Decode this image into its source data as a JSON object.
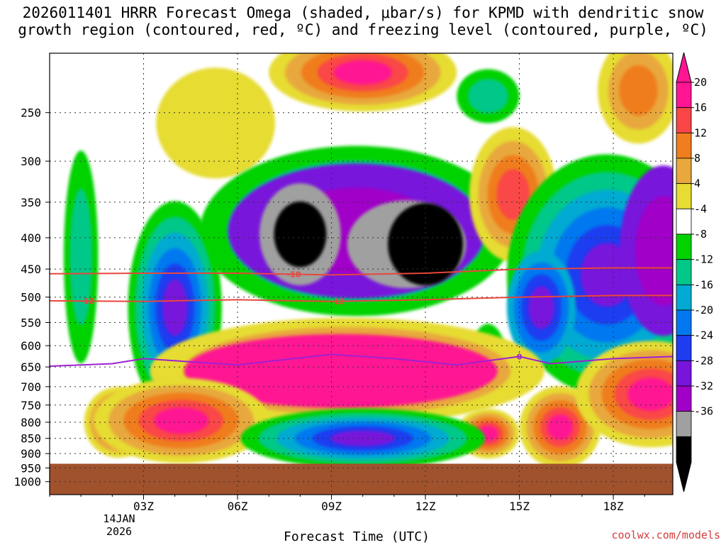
{
  "chart_data": {
    "type": "heatmap",
    "title_line1": "2026011401 HRRR Forecast Omega (shaded, μbar/s) for KPMD with dendritic snow",
    "title_line2": "growth region (contoured, red, ºC) and freezing level (contoured, purple, ºC)",
    "xlabel": "Forecast Time (UTC)",
    "ylabel": "",
    "credit": "coolwx.com/models",
    "date_label": [
      "14JAN",
      "2026"
    ],
    "x_ticks": [
      {
        "h": 3,
        "label": "03Z"
      },
      {
        "h": 6,
        "label": "06Z"
      },
      {
        "h": 9,
        "label": "09Z"
      },
      {
        "h": 12,
        "label": "12Z"
      },
      {
        "h": 15,
        "label": "15Z"
      },
      {
        "h": 18,
        "label": "18Z"
      }
    ],
    "xlim": [
      0,
      19.9
    ],
    "y_ticks": [
      250,
      300,
      350,
      400,
      450,
      500,
      550,
      600,
      650,
      700,
      750,
      800,
      850,
      900,
      950,
      1000
    ],
    "ylim_hPa": [
      1050,
      200
    ],
    "surface_pressure_hPa": 935,
    "colorbar": {
      "labels": [
        "20",
        "16",
        "12",
        "8",
        "4",
        "-4",
        "-8",
        "-12",
        "-16",
        "-20",
        "-24",
        "-28",
        "-32",
        "-36"
      ],
      "colors": [
        "#ff1493",
        "#fa4646",
        "#f07d1e",
        "#e8a83c",
        "#e6dc32",
        "#ffffff",
        "#00d200",
        "#00c888",
        "#00aad2",
        "#0078f0",
        "#1e3cf0",
        "#7814dc",
        "#a000c8",
        "#a0a0a0",
        "#000000"
      ],
      "arrow_top_color": "#ff1493",
      "arrow_bottom_color": "#000000"
    },
    "series": [
      {
        "name": "-18 ºC isotherm",
        "label": "-18",
        "color": "#e8463c",
        "x": [
          0,
          3,
          6,
          9,
          12,
          15,
          18,
          19.9
        ],
        "y": [
          458,
          457,
          457,
          460,
          457,
          450,
          448,
          448
        ]
      },
      {
        "name": "-12 ºC isotherm",
        "label": "-12",
        "color": "#e8463c",
        "x": [
          0,
          3,
          6,
          9,
          12,
          15,
          18,
          19.9
        ],
        "y": [
          507,
          508,
          505,
          508,
          505,
          500,
          497,
          497
        ]
      },
      {
        "name": "0 ºC freezing level",
        "label": "0",
        "color": "#a020d0",
        "x": [
          0,
          2,
          3,
          6,
          9,
          11,
          13,
          15,
          16,
          18,
          19.9
        ],
        "y": [
          648,
          642,
          630,
          645,
          620,
          630,
          645,
          625,
          642,
          630,
          625
        ]
      }
    ],
    "omega_features": [
      {
        "name": "strong ascent core A",
        "x": 8.0,
        "p": 400,
        "value": -38
      },
      {
        "name": "strong ascent core B",
        "x": 11.5,
        "p": 420,
        "value": -38
      },
      {
        "name": "upper descent max",
        "x": 10.0,
        "p": 220,
        "value": 20
      },
      {
        "name": "mid-level descent band",
        "x": 9.5,
        "p": 660,
        "value": 20
      },
      {
        "name": "low-level descent max",
        "x": 4.0,
        "p": 800,
        "value": 20
      },
      {
        "name": "low-level ascent band",
        "x": 10.0,
        "p": 860,
        "value": -30
      },
      {
        "name": "descent cell",
        "x": 15.0,
        "p": 330,
        "value": 16
      },
      {
        "name": "ascent plume",
        "x": 19.5,
        "p": 420,
        "value": -28
      }
    ]
  }
}
